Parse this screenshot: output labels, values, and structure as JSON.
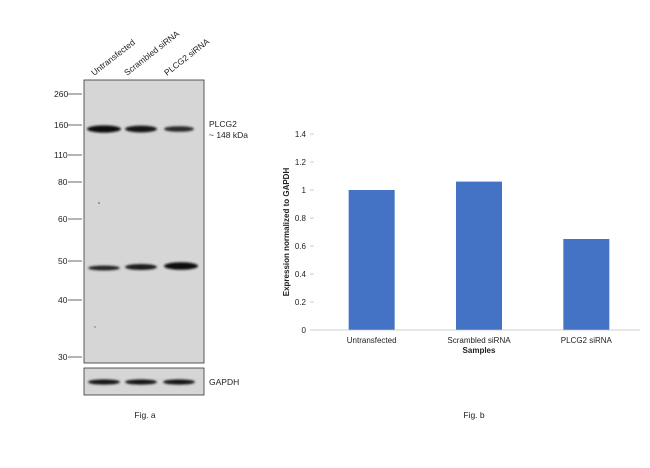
{
  "figure_a": {
    "lane_labels": [
      "Untransfected",
      "Scrambled siRNA",
      "PLCG2 siRNA"
    ],
    "mw_markers": [
      "260",
      "160",
      "110",
      "80",
      "60",
      "50",
      "40",
      "30"
    ],
    "mw_marker_values": [
      260,
      160,
      110,
      80,
      60,
      50,
      40,
      30
    ],
    "target_name": "PLCG2",
    "target_size": "~ 148 kDa",
    "loading_control": "GAPDH",
    "caption": "Fig. a",
    "band_colors": {
      "background": "#d6d6d6",
      "band": "#111111"
    }
  },
  "figure_b": {
    "caption": "Fig. b"
  },
  "chart_data": {
    "type": "bar",
    "categories": [
      "Untransfected",
      "Scrambled siRNA",
      "PLCG2 siRNA"
    ],
    "values": [
      1.0,
      1.06,
      0.65
    ],
    "title": "",
    "xlabel": "Samples",
    "ylabel": "Expression normalized to GAPDH",
    "ylim": [
      0,
      1.4
    ],
    "yticks": [
      "0",
      "0.2",
      "0.4",
      "0.6",
      "0.8",
      "1",
      "1.2",
      "1.4"
    ],
    "grid": false,
    "bar_color": "#4472c4"
  }
}
